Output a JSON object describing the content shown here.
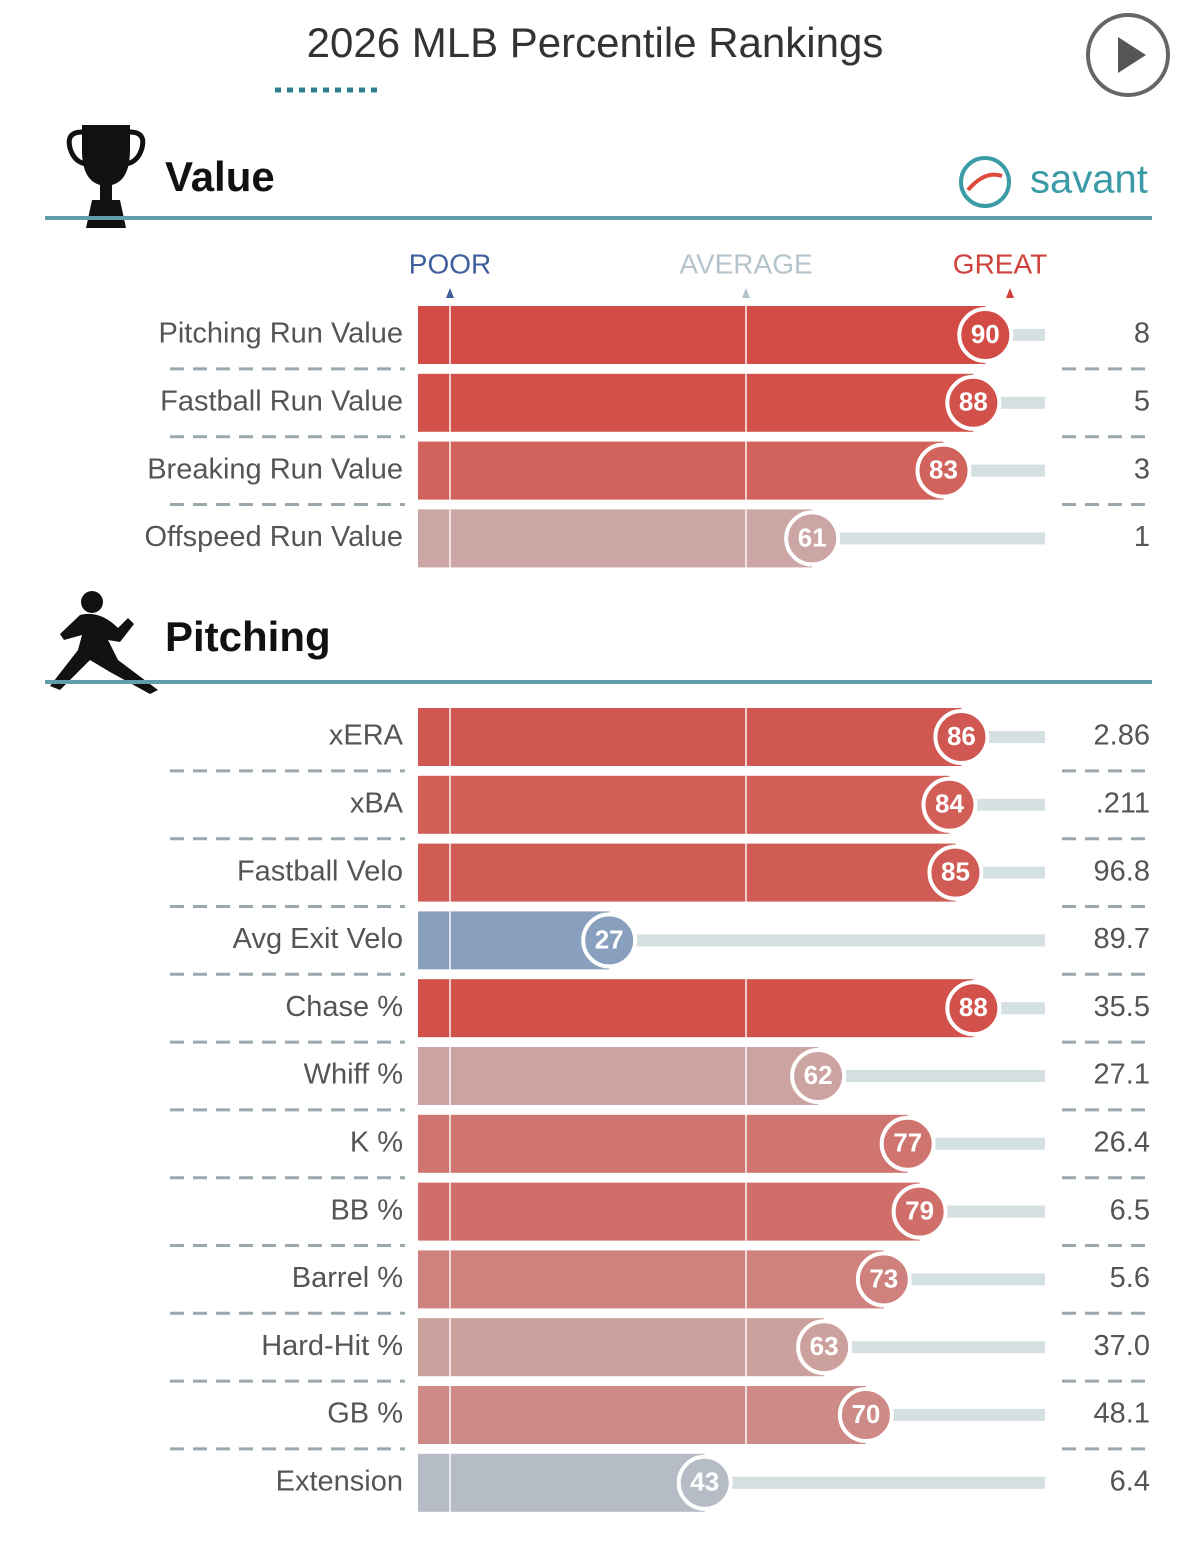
{
  "page": {
    "title": "2026 MLB Percentile Rankings",
    "brand": "savant",
    "scale_labels": [
      "POOR",
      "AVERAGE",
      "GREAT"
    ]
  },
  "chart_data": [
    {
      "type": "bar",
      "title": "Value",
      "categories": [
        "Pitching Run Value",
        "Fastball Run Value",
        "Breaking Run Value",
        "Offspeed Run Value"
      ],
      "values": [
        90,
        88,
        83,
        61
      ],
      "stat_values": [
        "8",
        "5",
        "3",
        "1"
      ],
      "xlim": [
        0,
        100
      ]
    },
    {
      "type": "bar",
      "title": "Pitching",
      "categories": [
        "xERA",
        "xBA",
        "Fastball Velo",
        "Avg Exit Velo",
        "Chase %",
        "Whiff %",
        "K %",
        "BB %",
        "Barrel %",
        "Hard-Hit %",
        "GB %",
        "Extension"
      ],
      "values": [
        86,
        84,
        85,
        27,
        88,
        62,
        77,
        79,
        73,
        63,
        70,
        43
      ],
      "stat_values": [
        "2.86",
        ".211",
        "96.8",
        "89.7",
        "35.5",
        "27.1",
        "26.4",
        "6.5",
        "5.6",
        "37.0",
        "48.1",
        "6.4"
      ],
      "xlim": [
        0,
        100
      ]
    }
  ]
}
